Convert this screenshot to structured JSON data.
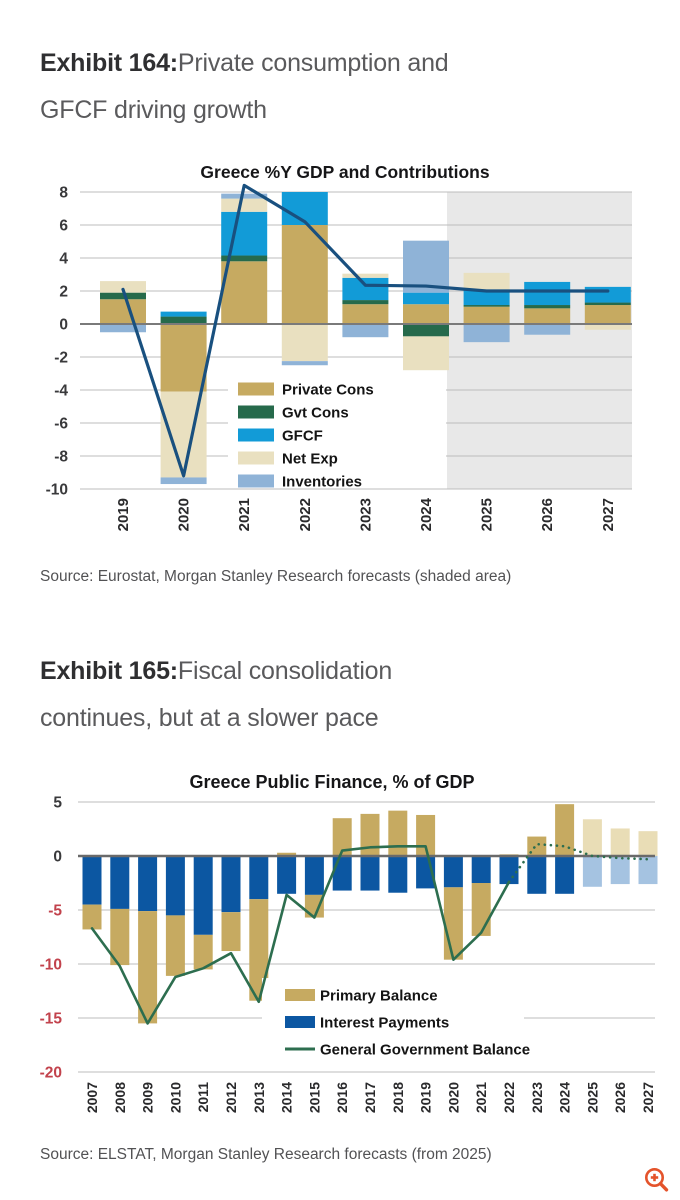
{
  "page": {
    "exhibit_164": {
      "label": "Exhibit 164:",
      "title_line1": "Private consumption and",
      "title_line2": "GFCF driving growth",
      "source": "Source: Eurostat, Morgan Stanley Research forecasts (shaded area)"
    },
    "exhibit_165": {
      "label": "Exhibit 165:",
      "title_line1": "Fiscal consolidation",
      "title_line2": "continues, but at a slower pace",
      "source": "Source: ELSTAT, Morgan Stanley Research forecasts (from 2025)"
    },
    "zoom_icon_color": "#e4532b"
  },
  "chart_data": [
    {
      "type": "bar",
      "subtype": "stacked-bars-with-line",
      "title": "Greece %Y GDP and Contributions",
      "categories": [
        "2019",
        "2020",
        "2021",
        "2022",
        "2023",
        "2024",
        "2025",
        "2026",
        "2027"
      ],
      "series": [
        {
          "name": "Private Cons",
          "color": "#c6aa61",
          "values": [
            1.5,
            -4.1,
            3.8,
            6.0,
            1.2,
            1.2,
            1.05,
            0.95,
            1.15
          ]
        },
        {
          "name": "Gvt Cons",
          "color": "#266a4b",
          "values": [
            0.4,
            0.45,
            0.35,
            0,
            0.25,
            -0.75,
            0.1,
            0.2,
            0.15
          ]
        },
        {
          "name": "GFCF",
          "color": "#129bd7",
          "values": [
            0,
            0.3,
            2.65,
            2.0,
            1.35,
            0.7,
            0.95,
            1.4,
            0.95
          ]
        },
        {
          "name": "Net Exp",
          "color": "#e9e0c0",
          "values": [
            0.7,
            -5.2,
            0.8,
            -2.25,
            0.25,
            -2.05,
            1.0,
            0,
            -0.35
          ]
        },
        {
          "name": "Inventories",
          "color": "#8fb3d7",
          "values": [
            -0.5,
            -0.4,
            0.3,
            -0.25,
            -0.8,
            3.15,
            -1.1,
            -0.65,
            0
          ]
        }
      ],
      "line": {
        "name": "GDP %Y",
        "color": "#19507f",
        "values": [
          2.1,
          -9.2,
          8.4,
          6.2,
          2.35,
          2.3,
          2.0,
          2.0,
          2.0
        ]
      },
      "ylim": [
        -10,
        8
      ],
      "yticks": [
        8,
        6,
        4,
        2,
        0,
        -2,
        -4,
        -6,
        -8,
        -10
      ],
      "ytick_color": "#39393b",
      "forecast_from": "2025",
      "forecast_style": "shaded-area",
      "shade_color": "#e8e8e8",
      "grid": true,
      "legend_position": "inside-bottom-center",
      "legend": [
        {
          "label": "Private Cons",
          "color": "#c6aa61",
          "type": "box"
        },
        {
          "label": "Gvt Cons",
          "color": "#266a4b",
          "type": "box"
        },
        {
          "label": "GFCF",
          "color": "#129bd7",
          "type": "box"
        },
        {
          "label": "Net Exp",
          "color": "#e9e0c0",
          "type": "box"
        },
        {
          "label": "Inventories",
          "color": "#8fb3d7",
          "type": "box"
        }
      ]
    },
    {
      "type": "bar",
      "subtype": "stacked-bars-with-line",
      "title": "Greece Public Finance, % of GDP",
      "categories": [
        "2007",
        "2008",
        "2009",
        "2010",
        "2011",
        "2012",
        "2013",
        "2014",
        "2015",
        "2016",
        "2017",
        "2018",
        "2019",
        "2020",
        "2021",
        "2022",
        "2023",
        "2024",
        "2025",
        "2026",
        "2027"
      ],
      "series": [
        {
          "name": "Interest Payments",
          "color": "#0c57a2",
          "forecast_color": "#a5c3e1",
          "values": [
            -4.5,
            -4.9,
            -5.1,
            -5.5,
            -7.3,
            -5.2,
            -4.0,
            -3.5,
            -3.6,
            -3.2,
            -3.2,
            -3.4,
            -3.0,
            -2.9,
            -2.5,
            -2.6,
            -3.5,
            -3.5,
            -2.85,
            -2.6,
            -2.6
          ]
        },
        {
          "name": "Primary Balance",
          "color": "#c6aa61",
          "forecast_color": "#e9ddb6",
          "values": [
            -2.3,
            -5.2,
            -10.4,
            -5.6,
            -3.2,
            -3.6,
            -9.4,
            0.3,
            -2.1,
            3.5,
            3.9,
            4.2,
            3.8,
            -6.7,
            -4.9,
            0.15,
            1.8,
            4.8,
            3.4,
            2.55,
            2.3
          ]
        }
      ],
      "line": {
        "name": "General Government Balance",
        "color": "#2d6e4f",
        "values": [
          -6.7,
          -10.2,
          -15.5,
          -11.2,
          -10.4,
          -9.0,
          -13.5,
          -3.6,
          -5.7,
          0.5,
          0.8,
          0.9,
          0.9,
          -9.6,
          -7.1,
          -2.4,
          1.1,
          0.9,
          0.0,
          -0.2,
          -0.3
        ],
        "dotted_from": "2022"
      },
      "ylim": [
        -20,
        5
      ],
      "yticks": [
        5,
        0,
        -5,
        -10,
        -15,
        -20
      ],
      "ytick_color": "#39393b",
      "ytick_negative_color": "#c2424c",
      "forecast_from": "2025",
      "forecast_style": "lighter-bars",
      "grid": true,
      "legend_position": "inside-bottom-center",
      "legend": [
        {
          "label": "Primary Balance",
          "color": "#c6aa61",
          "type": "box"
        },
        {
          "label": "Interest Payments",
          "color": "#0c57a2",
          "type": "box"
        },
        {
          "label": "General Government Balance",
          "color": "#2d6e4f",
          "type": "line"
        }
      ]
    }
  ]
}
